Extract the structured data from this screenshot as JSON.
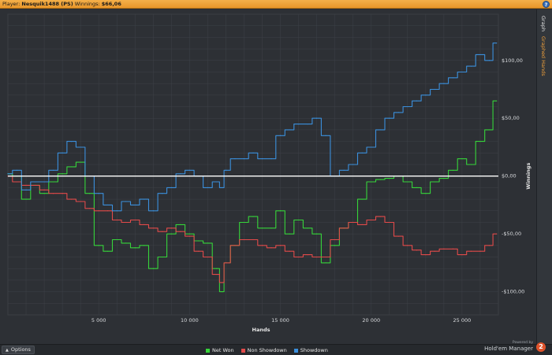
{
  "titlebar": {
    "player_label": "Player: ",
    "player_name": "Nesquik1488 (PS)",
    "winnings_label": " Winnings: ",
    "winnings_value": "$66,06",
    "help_label": "?"
  },
  "sidebar": {
    "tabs": [
      {
        "label": "Graph",
        "active": true
      },
      {
        "label": "Graphed Hands",
        "active": false
      }
    ]
  },
  "bottombar": {
    "options_label": "Options",
    "brand_powered": "Powered by",
    "brand_name": "Hold'em Manager",
    "brand_logo": "2"
  },
  "colors": {
    "net_won": "#36d43a",
    "non_showdown": "#e24a4a",
    "showdown": "#3b8fdc",
    "zero_line": "#ffffff",
    "grid": "#3e4248",
    "background": "#2d3035"
  },
  "chart_data": {
    "type": "line",
    "title": "",
    "xlabel": "Hands",
    "ylabel": "Winnings",
    "xlim": [
      0,
      27000
    ],
    "ylim": [
      -120,
      140
    ],
    "x_ticks": [
      5000,
      10000,
      15000,
      20000,
      25000
    ],
    "x_tick_labels": [
      "5 000",
      "10 000",
      "15 000",
      "20 000",
      "25 000"
    ],
    "y_ticks": [
      100,
      50,
      0,
      -50,
      -100
    ],
    "y_tick_labels": [
      "$100,00",
      "$50,00",
      "$0,00",
      "-$50,00",
      "-$100,00"
    ],
    "grid": true,
    "legend_position": "bottom",
    "series": [
      {
        "name": "Net Won",
        "color": "#36d43a",
        "x": [
          0,
          500,
          1000,
          1500,
          2000,
          2500,
          3000,
          3500,
          4000,
          4500,
          5000,
          5500,
          6000,
          6500,
          7000,
          7500,
          8000,
          8500,
          9000,
          9500,
          10000,
          10500,
          11000,
          11500,
          11800,
          12000,
          12500,
          13000,
          13500,
          14000,
          14500,
          15000,
          15500,
          16000,
          16500,
          17000,
          17500,
          18000,
          18500,
          19000,
          19500,
          20000,
          20500,
          21000,
          21500,
          22000,
          22500,
          23000,
          23500,
          24000,
          24500,
          25000,
          25500,
          26000,
          26500,
          26900
        ],
        "y": [
          2,
          0,
          -20,
          -8,
          -15,
          -5,
          2,
          8,
          12,
          -15,
          -60,
          -65,
          -55,
          -58,
          -62,
          -60,
          -80,
          -70,
          -50,
          -42,
          -50,
          -56,
          -58,
          -80,
          -100,
          -75,
          -60,
          -40,
          -35,
          -45,
          -45,
          -30,
          -50,
          -38,
          -45,
          -50,
          -75,
          -60,
          -45,
          -40,
          -20,
          -5,
          -3,
          -2,
          0,
          -5,
          -10,
          -15,
          -5,
          -2,
          5,
          15,
          10,
          30,
          40,
          65
        ]
      },
      {
        "name": "Non Showdown",
        "color": "#e24a4a",
        "x": [
          0,
          500,
          1000,
          1500,
          2000,
          2500,
          3000,
          3500,
          4000,
          4500,
          5000,
          5500,
          6000,
          6500,
          7000,
          7500,
          8000,
          8500,
          9000,
          9500,
          10000,
          10500,
          11000,
          11500,
          11800,
          12000,
          12500,
          13000,
          13500,
          14000,
          14500,
          15000,
          15500,
          16000,
          16500,
          17000,
          17500,
          18000,
          18500,
          19000,
          19500,
          20000,
          20500,
          21000,
          21500,
          22000,
          22500,
          23000,
          23500,
          24000,
          24500,
          25000,
          25500,
          26000,
          26500,
          26900
        ],
        "y": [
          0,
          -5,
          -8,
          -8,
          -12,
          -15,
          -15,
          -20,
          -22,
          -28,
          -30,
          -30,
          -38,
          -40,
          -38,
          -42,
          -45,
          -48,
          -45,
          -48,
          -52,
          -65,
          -70,
          -85,
          -92,
          -75,
          -60,
          -55,
          -55,
          -60,
          -62,
          -60,
          -65,
          -70,
          -68,
          -70,
          -70,
          -55,
          -45,
          -40,
          -42,
          -38,
          -35,
          -40,
          -52,
          -60,
          -64,
          -68,
          -65,
          -63,
          -63,
          -68,
          -65,
          -65,
          -60,
          -50
        ]
      },
      {
        "name": "Showdown",
        "color": "#3b8fdc",
        "x": [
          0,
          500,
          1000,
          1500,
          2000,
          2500,
          3000,
          3500,
          4000,
          4500,
          5000,
          5500,
          6000,
          6500,
          7000,
          7500,
          8000,
          8500,
          9000,
          9500,
          10000,
          10500,
          11000,
          11500,
          11800,
          12000,
          12500,
          13000,
          13500,
          14000,
          14500,
          15000,
          15500,
          16000,
          16500,
          17000,
          17500,
          18000,
          18500,
          19000,
          19500,
          20000,
          20500,
          21000,
          21500,
          22000,
          22500,
          23000,
          23500,
          24000,
          24500,
          25000,
          25500,
          26000,
          26500,
          26900
        ],
        "y": [
          2,
          5,
          -12,
          -5,
          -5,
          5,
          20,
          30,
          25,
          0,
          -15,
          -25,
          -30,
          -22,
          -25,
          -20,
          -30,
          -15,
          -10,
          2,
          5,
          0,
          -10,
          -5,
          -10,
          5,
          15,
          15,
          20,
          15,
          15,
          35,
          40,
          45,
          45,
          50,
          35,
          0,
          5,
          10,
          20,
          25,
          40,
          50,
          55,
          60,
          65,
          70,
          75,
          80,
          85,
          90,
          95,
          105,
          100,
          115
        ]
      }
    ]
  }
}
